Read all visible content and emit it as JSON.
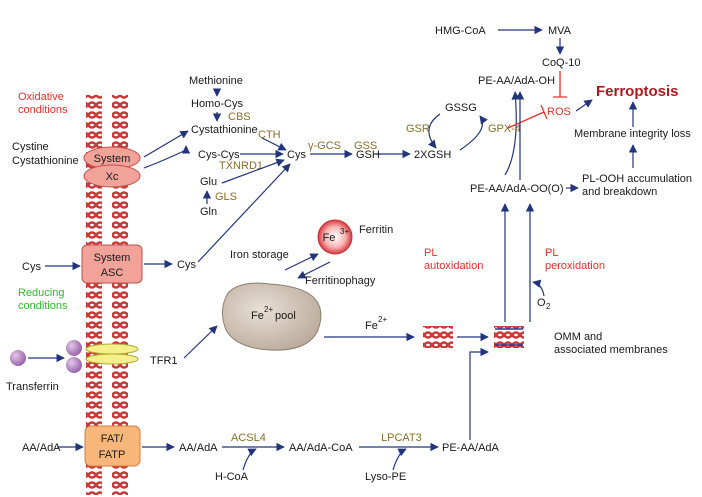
{
  "conditions": {
    "oxidative": "Oxidative\nconditions",
    "reducing": "Reducing\nconditions"
  },
  "transporters": {
    "system_xc": {
      "top": "System",
      "bottom": "Xc"
    },
    "system_asc": {
      "top": "System",
      "bottom": "ASC"
    },
    "tfr1": "TFR1",
    "fat_fatp": {
      "top": "FAT/",
      "bottom": "FATP"
    }
  },
  "left_inputs": {
    "cystine": "Cystine",
    "cystathionine": "Cystathionine",
    "cys": "Cys",
    "transferrin": "Transferrin",
    "aa_ada": "AA/AdA"
  },
  "metabolites": {
    "methionine": "Methionine",
    "homo_cys": "Homo-Cys",
    "cystathionine": "Cystathionine",
    "cys_cys": "Cys-Cys",
    "cys_center": "Cys",
    "glu": "Glu",
    "gln": "Gln",
    "gsh": "GSH",
    "two_gsh": "2XGSH",
    "gssg": "GSSG",
    "hmg_coa": "HMG-CoA",
    "mva": "MVA",
    "coq10": "CoQ-10",
    "pe_oh": "PE-AA/AdA-OH",
    "pe_ooh": "PE-AA/AdA-OO(O)",
    "cys_asc": "Cys",
    "aa_ada2": "AA/AdA",
    "aa_ada_coa": "AA/AdA-CoA",
    "pe_aa_ada": "PE-AA/AdA",
    "h_coa": "H-CoA",
    "lyso_pe": "Lyso-PE",
    "o2": "O",
    "o2_sub": "2"
  },
  "enzymes": {
    "cbs": "CBS",
    "cth": "CTH",
    "txnrd1": "TXNRD1",
    "gls": "GLS",
    "gamma_gcs": "γ-GCS",
    "gss": "GSS",
    "gsr": "GSR",
    "gpx4": "GPX-4",
    "acsl4": "ACSL4",
    "lpcat3": "LPCAT3"
  },
  "iron": {
    "ferritin": "Ferritin",
    "fe3": "Fe",
    "fe3_sup": "3+",
    "iron_storage": "Iron storage",
    "ferritinophagy": "Ferritinophagy",
    "pool_fe": "Fe",
    "pool_sup": "2+",
    "pool_word": "pool",
    "fe2_label": "Fe",
    "fe2_sup": "2+"
  },
  "processes": {
    "pl_autoxidation": "PL\nautoxidation",
    "pl_peroxidation": "PL\nperoxidation"
  },
  "outcomes": {
    "ros": "ROS",
    "ferroptosis": "Ferroptosis",
    "membrane_loss": "Membrane integrity loss",
    "pl_ooh": "PL-OOH accumulation\nand breakdown",
    "omm": "OMM and\nassociated membranes"
  },
  "colors": {
    "arrow": "#23357a",
    "enzyme": "#8a6d2a",
    "red_text": "#e8302a",
    "green_text": "#2fb82f",
    "ferroptosis": "#b01820",
    "membrane": "#c83a3a",
    "transporter_fill": "#f1a39a"
  }
}
